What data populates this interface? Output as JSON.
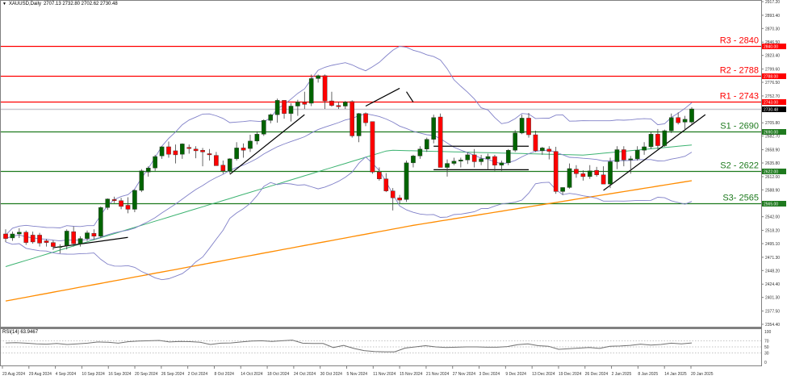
{
  "header": {
    "symbol_title": "XAUUSD,Daily",
    "ohlc": "2707.13 2732.80 2702.62 2730.48"
  },
  "rsi_pane": {
    "title": "RSI(14) 63.9467",
    "levels": [
      100,
      70,
      50,
      30,
      0
    ],
    "level_labels": [
      "100",
      "70",
      "50",
      "30",
      "0"
    ]
  },
  "price_axis": {
    "labels": [
      "2917.20",
      "2893.40",
      "2870.30",
      "2846.50",
      "2823.40",
      "2799.60",
      "2776.50",
      "2752.70",
      "2705.80",
      "2682.70",
      "2658.90",
      "2635.80",
      "2612.00",
      "2588.90",
      "2542.00",
      "2518.20",
      "2495.10",
      "2471.30",
      "2448.20",
      "2424.40",
      "2401.30",
      "2377.50",
      "2354.40"
    ],
    "current_price_label": "2730.48",
    "current_price_color": "#000000"
  },
  "levels": [
    {
      "name": "R3",
      "label": "R3 - 2840",
      "value": 2840,
      "tag": "2840.00",
      "color": "#ff0000"
    },
    {
      "name": "R2",
      "label": "R2 - 2788",
      "value": 2788,
      "tag": "2788.00",
      "color": "#ff0000"
    },
    {
      "name": "R1",
      "label": "R1 - 2743",
      "value": 2743,
      "tag": "2743.00",
      "color": "#ff0000"
    },
    {
      "name": "S1",
      "label": "S1 - 2690",
      "value": 2690,
      "tag": "2690.00",
      "color": "#1e7a1e"
    },
    {
      "name": "S2",
      "label": "S2 - 2622",
      "value": 2622,
      "tag": "2622.00",
      "color": "#1e7a1e"
    },
    {
      "name": "S3",
      "label": "S3- 2565",
      "value": 2565,
      "tag": "2565.00",
      "color": "#1e7a1e"
    }
  ],
  "time_axis": {
    "labels": [
      "23 Aug 2024",
      "29 Aug 2024",
      "4 Sep 2024",
      "10 Sep 2024",
      "16 Sep 2024",
      "20 Sep 2024",
      "26 Sep 2024",
      "2 Oct 2024",
      "8 Oct 2024",
      "14 Oct 2024",
      "18 Oct 2024",
      "24 Oct 2024",
      "30 Oct 2024",
      "5 Nov 2024",
      "11 Nov 2024",
      "15 Nov 2024",
      "21 Nov 2024",
      "27 Nov 2024",
      "3 Dec 2024",
      "9 Dec 2024",
      "13 Dec 2024",
      "19 Dec 2024",
      "26 Dec 2024",
      "2 Jan 2025",
      "8 Jan 2025",
      "14 Jan 2025",
      "20 Jan 2025"
    ]
  },
  "colors": {
    "bull": "#006400",
    "bear": "#ff0000",
    "bollinger": "#8080c8",
    "ma_green": "#3cb371",
    "ma_orange": "#ff8c00",
    "trendline": "#000000",
    "grid_border": "#808080"
  },
  "chart_data": {
    "type": "candlestick",
    "title": "XAUUSD,Daily",
    "subtitle": "2707.13 2732.80 2702.62 2730.48",
    "xlabel": "",
    "ylabel": "",
    "ylim": [
      2354.4,
      2917.2
    ],
    "grid": false,
    "x": [
      "23 Aug 2024",
      "29 Aug 2024",
      "4 Sep 2024",
      "10 Sep 2024",
      "16 Sep 2024",
      "20 Sep 2024",
      "26 Sep 2024",
      "2 Oct 2024",
      "8 Oct 2024",
      "14 Oct 2024",
      "18 Oct 2024",
      "24 Oct 2024",
      "30 Oct 2024",
      "5 Nov 2024",
      "11 Nov 2024",
      "15 Nov 2024",
      "21 Nov 2024",
      "27 Nov 2024",
      "3 Dec 2024",
      "9 Dec 2024",
      "13 Dec 2024",
      "19 Dec 2024",
      "26 Dec 2024",
      "2 Jan 2025",
      "8 Jan 2025",
      "14 Jan 2025",
      "20 Jan 2025"
    ],
    "candles": [
      [
        2512,
        2520,
        2498,
        2504
      ],
      [
        2505,
        2516,
        2500,
        2512
      ],
      [
        2512,
        2522,
        2505,
        2515
      ],
      [
        2515,
        2518,
        2493,
        2497
      ],
      [
        2510,
        2516,
        2495,
        2498
      ],
      [
        2510,
        2514,
        2490,
        2496
      ],
      [
        2500,
        2503,
        2490,
        2497
      ],
      [
        2497,
        2501,
        2484,
        2490
      ],
      [
        2490,
        2494,
        2478,
        2490
      ],
      [
        2492,
        2520,
        2485,
        2517
      ],
      [
        2516,
        2525,
        2490,
        2495
      ],
      [
        2495,
        2508,
        2490,
        2504
      ],
      [
        2504,
        2518,
        2500,
        2514
      ],
      [
        2513,
        2520,
        2502,
        2508
      ],
      [
        2508,
        2560,
        2505,
        2558
      ],
      [
        2558,
        2574,
        2554,
        2573
      ],
      [
        2572,
        2577,
        2566,
        2570
      ],
      [
        2570,
        2575,
        2555,
        2560
      ],
      [
        2562,
        2576,
        2548,
        2555
      ],
      [
        2555,
        2590,
        2550,
        2588
      ],
      [
        2588,
        2625,
        2585,
        2622
      ],
      [
        2620,
        2630,
        2612,
        2627
      ],
      [
        2627,
        2650,
        2622,
        2647
      ],
      [
        2648,
        2665,
        2643,
        2664
      ],
      [
        2664,
        2673,
        2645,
        2651
      ],
      [
        2657,
        2668,
        2635,
        2650
      ],
      [
        2651,
        2670,
        2643,
        2669
      ],
      [
        2663,
        2668,
        2652,
        2661
      ],
      [
        2660,
        2665,
        2644,
        2657
      ],
      [
        2658,
        2662,
        2630,
        2655
      ],
      [
        2652,
        2660,
        2640,
        2650
      ],
      [
        2649,
        2655,
        2632,
        2631
      ],
      [
        2632,
        2640,
        2617,
        2622
      ],
      [
        2622,
        2644,
        2618,
        2643
      ],
      [
        2643,
        2672,
        2640,
        2662
      ],
      [
        2662,
        2670,
        2645,
        2658
      ],
      [
        2661,
        2685,
        2655,
        2674
      ],
      [
        2674,
        2691,
        2668,
        2686
      ],
      [
        2686,
        2712,
        2683,
        2710
      ],
      [
        2710,
        2722,
        2705,
        2720
      ],
      [
        2720,
        2748,
        2706,
        2745
      ],
      [
        2745,
        2745,
        2713,
        2722
      ],
      [
        2722,
        2740,
        2708,
        2735
      ],
      [
        2735,
        2746,
        2718,
        2742
      ],
      [
        2742,
        2760,
        2730,
        2738
      ],
      [
        2740,
        2790,
        2735,
        2783
      ],
      [
        2783,
        2790,
        2776,
        2788
      ],
      [
        2788,
        2790,
        2730,
        2744
      ],
      [
        2744,
        2760,
        2734,
        2736
      ],
      [
        2736,
        2742,
        2730,
        2734
      ],
      [
        2735,
        2744,
        2730,
        2742
      ],
      [
        2743,
        2745,
        2680,
        2683
      ],
      [
        2683,
        2723,
        2672,
        2722
      ],
      [
        2722,
        2724,
        2700,
        2706
      ],
      [
        2708,
        2708,
        2617,
        2620
      ],
      [
        2620,
        2628,
        2605,
        2608
      ],
      [
        2608,
        2618,
        2585,
        2587
      ],
      [
        2587,
        2592,
        2553,
        2575
      ],
      [
        2575,
        2580,
        2565,
        2571
      ],
      [
        2572,
        2640,
        2568,
        2636
      ],
      [
        2636,
        2650,
        2628,
        2648
      ],
      [
        2648,
        2665,
        2643,
        2660
      ],
      [
        2660,
        2680,
        2655,
        2677
      ],
      [
        2677,
        2720,
        2670,
        2715
      ],
      [
        2716,
        2722,
        2650,
        2628
      ],
      [
        2628,
        2642,
        2612,
        2635
      ],
      [
        2635,
        2645,
        2632,
        2639
      ],
      [
        2639,
        2645,
        2628,
        2641
      ],
      [
        2641,
        2654,
        2634,
        2650
      ],
      [
        2650,
        2660,
        2628,
        2638
      ],
      [
        2638,
        2650,
        2632,
        2643
      ],
      [
        2643,
        2652,
        2625,
        2647
      ],
      [
        2647,
        2650,
        2622,
        2632
      ],
      [
        2632,
        2640,
        2622,
        2636
      ],
      [
        2636,
        2660,
        2632,
        2658
      ],
      [
        2658,
        2693,
        2655,
        2688
      ],
      [
        2688,
        2720,
        2686,
        2714
      ],
      [
        2714,
        2723,
        2680,
        2685
      ],
      [
        2685,
        2692,
        2655,
        2657
      ],
      [
        2657,
        2664,
        2650,
        2662
      ],
      [
        2660,
        2665,
        2642,
        2656
      ],
      [
        2656,
        2664,
        2582,
        2586
      ],
      [
        2586,
        2593,
        2580,
        2593
      ],
      [
        2593,
        2635,
        2591,
        2626
      ],
      [
        2625,
        2632,
        2610,
        2617
      ],
      [
        2617,
        2623,
        2605,
        2612
      ],
      [
        2612,
        2632,
        2608,
        2622
      ],
      [
        2623,
        2629,
        2612,
        2615
      ],
      [
        2615,
        2630,
        2604,
        2599
      ],
      [
        2599,
        2645,
        2592,
        2638
      ],
      [
        2638,
        2665,
        2625,
        2659
      ],
      [
        2659,
        2665,
        2630,
        2641
      ],
      [
        2641,
        2648,
        2617,
        2643
      ],
      [
        2643,
        2665,
        2640,
        2658
      ],
      [
        2658,
        2672,
        2650,
        2664
      ],
      [
        2664,
        2690,
        2660,
        2686
      ],
      [
        2686,
        2695,
        2660,
        2666
      ],
      [
        2666,
        2694,
        2664,
        2692
      ],
      [
        2692,
        2722,
        2688,
        2715
      ],
      [
        2715,
        2724,
        2703,
        2706
      ],
      [
        2707,
        2718,
        2692,
        2712
      ],
      [
        2707,
        2733,
        2703,
        2730
      ]
    ],
    "series": [
      {
        "name": "MA (green)",
        "type": "line",
        "color": "#3cb371"
      },
      {
        "name": "MA (orange)",
        "type": "line",
        "color": "#ff8c00"
      },
      {
        "name": "Bollinger bands",
        "type": "line",
        "color": "#8080c8"
      }
    ],
    "horizontal_levels": [
      {
        "label": "R3 - 2840",
        "value": 2840
      },
      {
        "label": "R2 - 2788",
        "value": 2788
      },
      {
        "label": "R1 - 2743",
        "value": 2743
      },
      {
        "label": "S1 - 2690",
        "value": 2690
      },
      {
        "label": "S2 - 2622",
        "value": 2622
      },
      {
        "label": "S3- 2565",
        "value": 2565
      }
    ],
    "current_price": 2730.48,
    "rsi": {
      "period": 14,
      "last": 63.9467,
      "levels": [
        70,
        50,
        30
      ],
      "values": [
        63,
        64,
        62,
        60,
        59,
        61,
        58,
        60,
        62,
        66,
        65,
        62,
        67,
        69,
        70,
        71,
        66,
        68,
        67,
        65,
        58,
        62,
        63,
        66,
        69,
        70,
        68,
        70,
        72,
        62,
        61,
        61,
        48,
        55,
        45,
        38,
        35,
        34,
        34,
        46,
        50,
        54,
        50,
        48,
        49,
        50,
        50,
        49,
        49,
        51,
        57,
        60,
        54,
        52,
        42,
        44,
        46,
        48,
        45,
        52,
        53,
        55,
        59,
        56,
        58,
        62,
        60,
        63
      ]
    }
  }
}
